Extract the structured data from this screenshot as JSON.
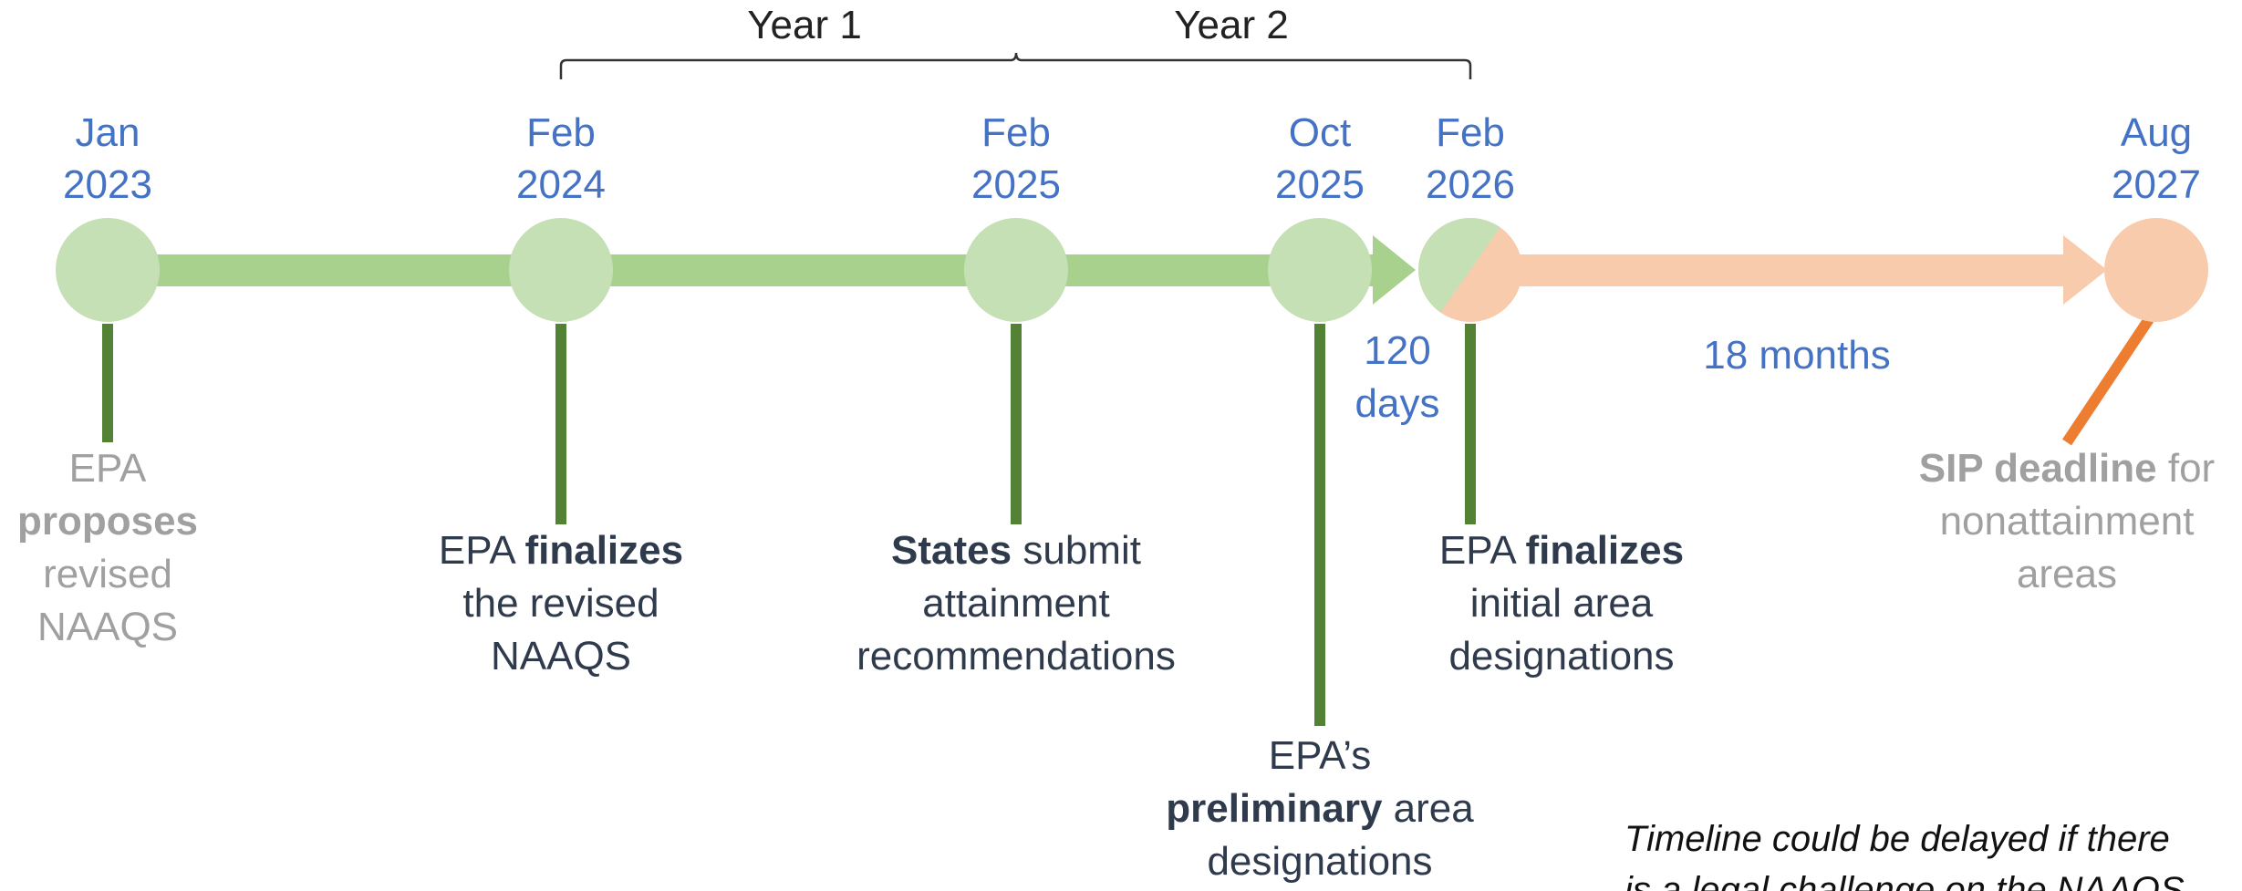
{
  "periods": [
    {
      "label": "Year 1"
    },
    {
      "label": "Year 2"
    }
  ],
  "milestones": [
    {
      "month": "Jan",
      "year": "2023",
      "lines": [
        [
          {
            "t": "EPA"
          }
        ],
        [
          {
            "b": "proposes"
          }
        ],
        [
          {
            "t": "revised"
          }
        ],
        [
          {
            "t": "NAAQS"
          }
        ]
      ],
      "style": "gray"
    },
    {
      "month": "Feb",
      "year": "2024",
      "lines": [
        [
          {
            "t": "EPA "
          },
          {
            "b": "finalizes"
          }
        ],
        [
          {
            "t": "the revised"
          }
        ],
        [
          {
            "t": "NAAQS"
          }
        ]
      ],
      "style": "dark"
    },
    {
      "month": "Feb",
      "year": "2025",
      "lines": [
        [
          {
            "b": "States"
          },
          {
            "t": " submit"
          }
        ],
        [
          {
            "t": "attainment"
          }
        ],
        [
          {
            "t": "recommendations"
          }
        ]
      ],
      "style": "dark"
    },
    {
      "month": "Oct",
      "year": "2025",
      "lines": [
        [
          {
            "t": "EPA’s"
          }
        ],
        [
          {
            "b": "preliminary"
          },
          {
            "t": " area"
          }
        ],
        [
          {
            "t": "designations"
          }
        ]
      ],
      "style": "dark"
    },
    {
      "month": "Feb",
      "year": "2026",
      "lines": [
        [
          {
            "t": "EPA "
          },
          {
            "b": "finalizes"
          }
        ],
        [
          {
            "t": "initial area"
          }
        ],
        [
          {
            "t": "designations"
          }
        ]
      ],
      "style": "dark"
    },
    {
      "month": "Aug",
      "year": "2027",
      "lines": [
        [
          {
            "b": "SIP deadline"
          },
          {
            "t": " for"
          }
        ],
        [
          {
            "t": "nonattainment"
          }
        ],
        [
          {
            "t": "areas"
          }
        ]
      ],
      "style": "gray"
    }
  ],
  "durations": [
    {
      "lines": [
        "120",
        "days"
      ]
    },
    {
      "lines": [
        "18 months"
      ]
    }
  ],
  "note": [
    "Timeline could be delayed if there",
    "is a legal challenge on the NAAQS."
  ]
}
